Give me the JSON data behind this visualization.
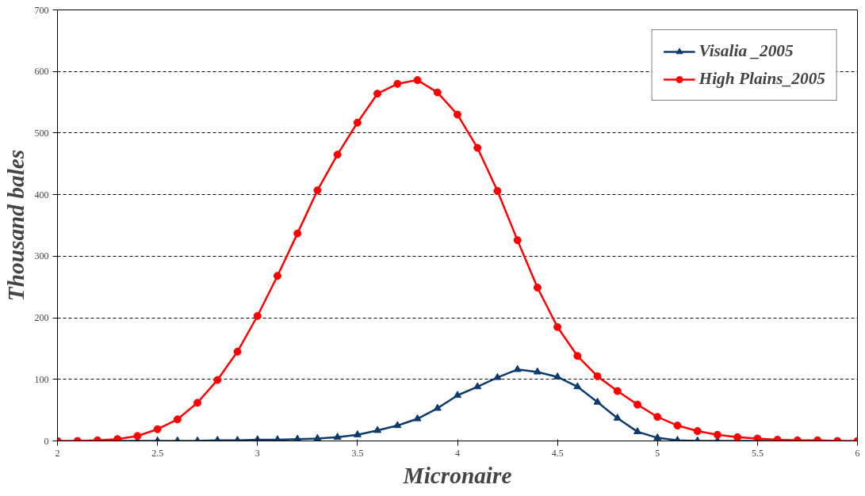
{
  "chart_data": {
    "type": "line",
    "xlabel": "Micronaire",
    "ylabel": "Thousand bales",
    "x": [
      2.0,
      2.1,
      2.2,
      2.3,
      2.4,
      2.5,
      2.6,
      2.7,
      2.8,
      2.9,
      3.0,
      3.1,
      3.2,
      3.3,
      3.4,
      3.5,
      3.6,
      3.7,
      3.8,
      3.9,
      4.0,
      4.1,
      4.2,
      4.3,
      4.4,
      4.5,
      4.6,
      4.7,
      4.8,
      4.9,
      5.0,
      5.1,
      5.2,
      5.3,
      5.4,
      5.5,
      5.6,
      5.7,
      5.8,
      5.9,
      6.0
    ],
    "series": [
      {
        "name": "Visalia _2005",
        "color": "#0d3b6e",
        "marker": "triangle",
        "values": [
          null,
          null,
          0,
          0,
          0,
          0,
          0,
          0,
          1,
          1,
          2,
          2,
          3,
          4,
          6,
          10,
          17,
          25,
          36,
          53,
          74,
          88,
          103,
          116,
          112,
          104,
          88,
          63,
          37,
          15,
          5,
          1,
          0,
          0,
          0,
          0,
          0,
          null,
          null,
          null,
          null
        ]
      },
      {
        "name": "High Plains_2005",
        "color": "#ff0000",
        "marker": "circle",
        "values": [
          0,
          0,
          1,
          3,
          8,
          19,
          35,
          62,
          99,
          145,
          203,
          268,
          337,
          407,
          465,
          517,
          564,
          580,
          586,
          566,
          530,
          476,
          406,
          326,
          249,
          185,
          138,
          105,
          81,
          59,
          39,
          25,
          16,
          10,
          6,
          4,
          2,
          1,
          1,
          0,
          0
        ]
      }
    ],
    "xlim": [
      2,
      6
    ],
    "xticks": [
      2,
      2.5,
      3,
      3.5,
      4,
      4.5,
      5,
      5.5,
      6
    ],
    "ylim": [
      0,
      700
    ],
    "yticks": [
      0,
      100,
      200,
      300,
      400,
      500,
      600,
      700
    ],
    "grid": "y",
    "legend": "top right",
    "line_style": "solid"
  }
}
